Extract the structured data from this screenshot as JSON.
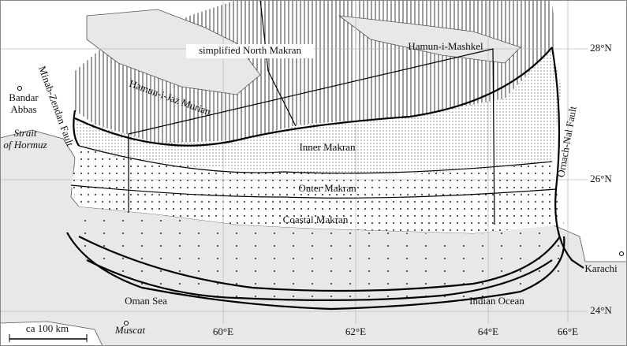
{
  "labels": {
    "north_makran": "simplified North Makran",
    "hamun_mashkel": "Hamun-i-Mashkel",
    "hamun_jaz_murian": "Hamun-i-Jaz Murian",
    "bandar_abbas": [
      "Bandar",
      "Abbas"
    ],
    "minab_zendan": "Minab-Zendan Fault",
    "strait_hormuz": [
      "Strait",
      "of Hormuz"
    ],
    "inner_makran": "Inner Makran",
    "outer_makran": "Outer Makran",
    "coastal_makran": "Coastal Makran",
    "ornach_nal": "Ornach-Nal Fault",
    "karachi": "Karachi",
    "oman_sea": "Oman Sea",
    "indian_ocean": "Indian Ocean",
    "muscat": "Muscat",
    "scale": "ca 100 km"
  },
  "latitudes": [
    "28°N",
    "26°N",
    "24°N"
  ],
  "longitudes": [
    "60°E",
    "62°E",
    "64°E",
    "66°E"
  ]
}
